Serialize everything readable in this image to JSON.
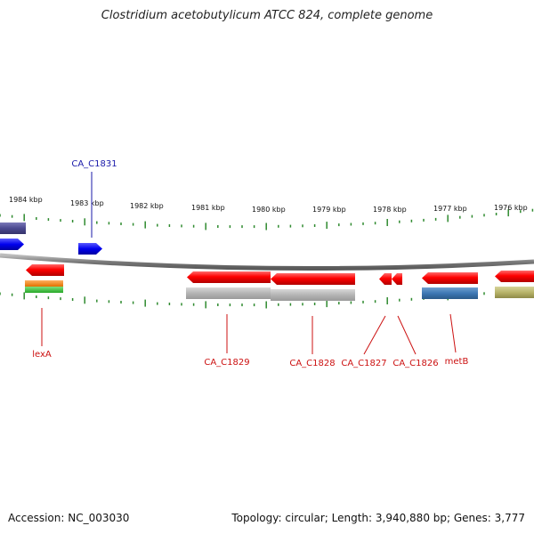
{
  "title": "Clostridium acetobutylicum ATCC 824, complete genome",
  "footer": {
    "accession": "Accession: NC_003030",
    "topology": "Topology: circular; Length: 3,940,880 bp; Genes: 3,777"
  },
  "colors": {
    "forward_gene": "#0000ee",
    "reverse_gene": "#ff0000",
    "backbone": "#7a7a7a",
    "tick": "#2f8a2f",
    "label_forward": "#1a1aaa",
    "label_reverse": "#cc1111"
  },
  "scale_labels": [
    "1984 kbp",
    "1983 kbp",
    "1982 kbp",
    "1981 kbp",
    "1980 kbp",
    "1979 kbp",
    "1978 kbp",
    "1977 kbp",
    "1976 kbp"
  ],
  "gene_labels": {
    "ca_c1831": "CA_C1831",
    "lexa": "lexA",
    "ca_c1829": "CA_C1829",
    "ca_c1828": "CA_C1828",
    "ca_c1827": "CA_C1827",
    "ca_c1826": "CA_C1826",
    "metb": "metB"
  }
}
